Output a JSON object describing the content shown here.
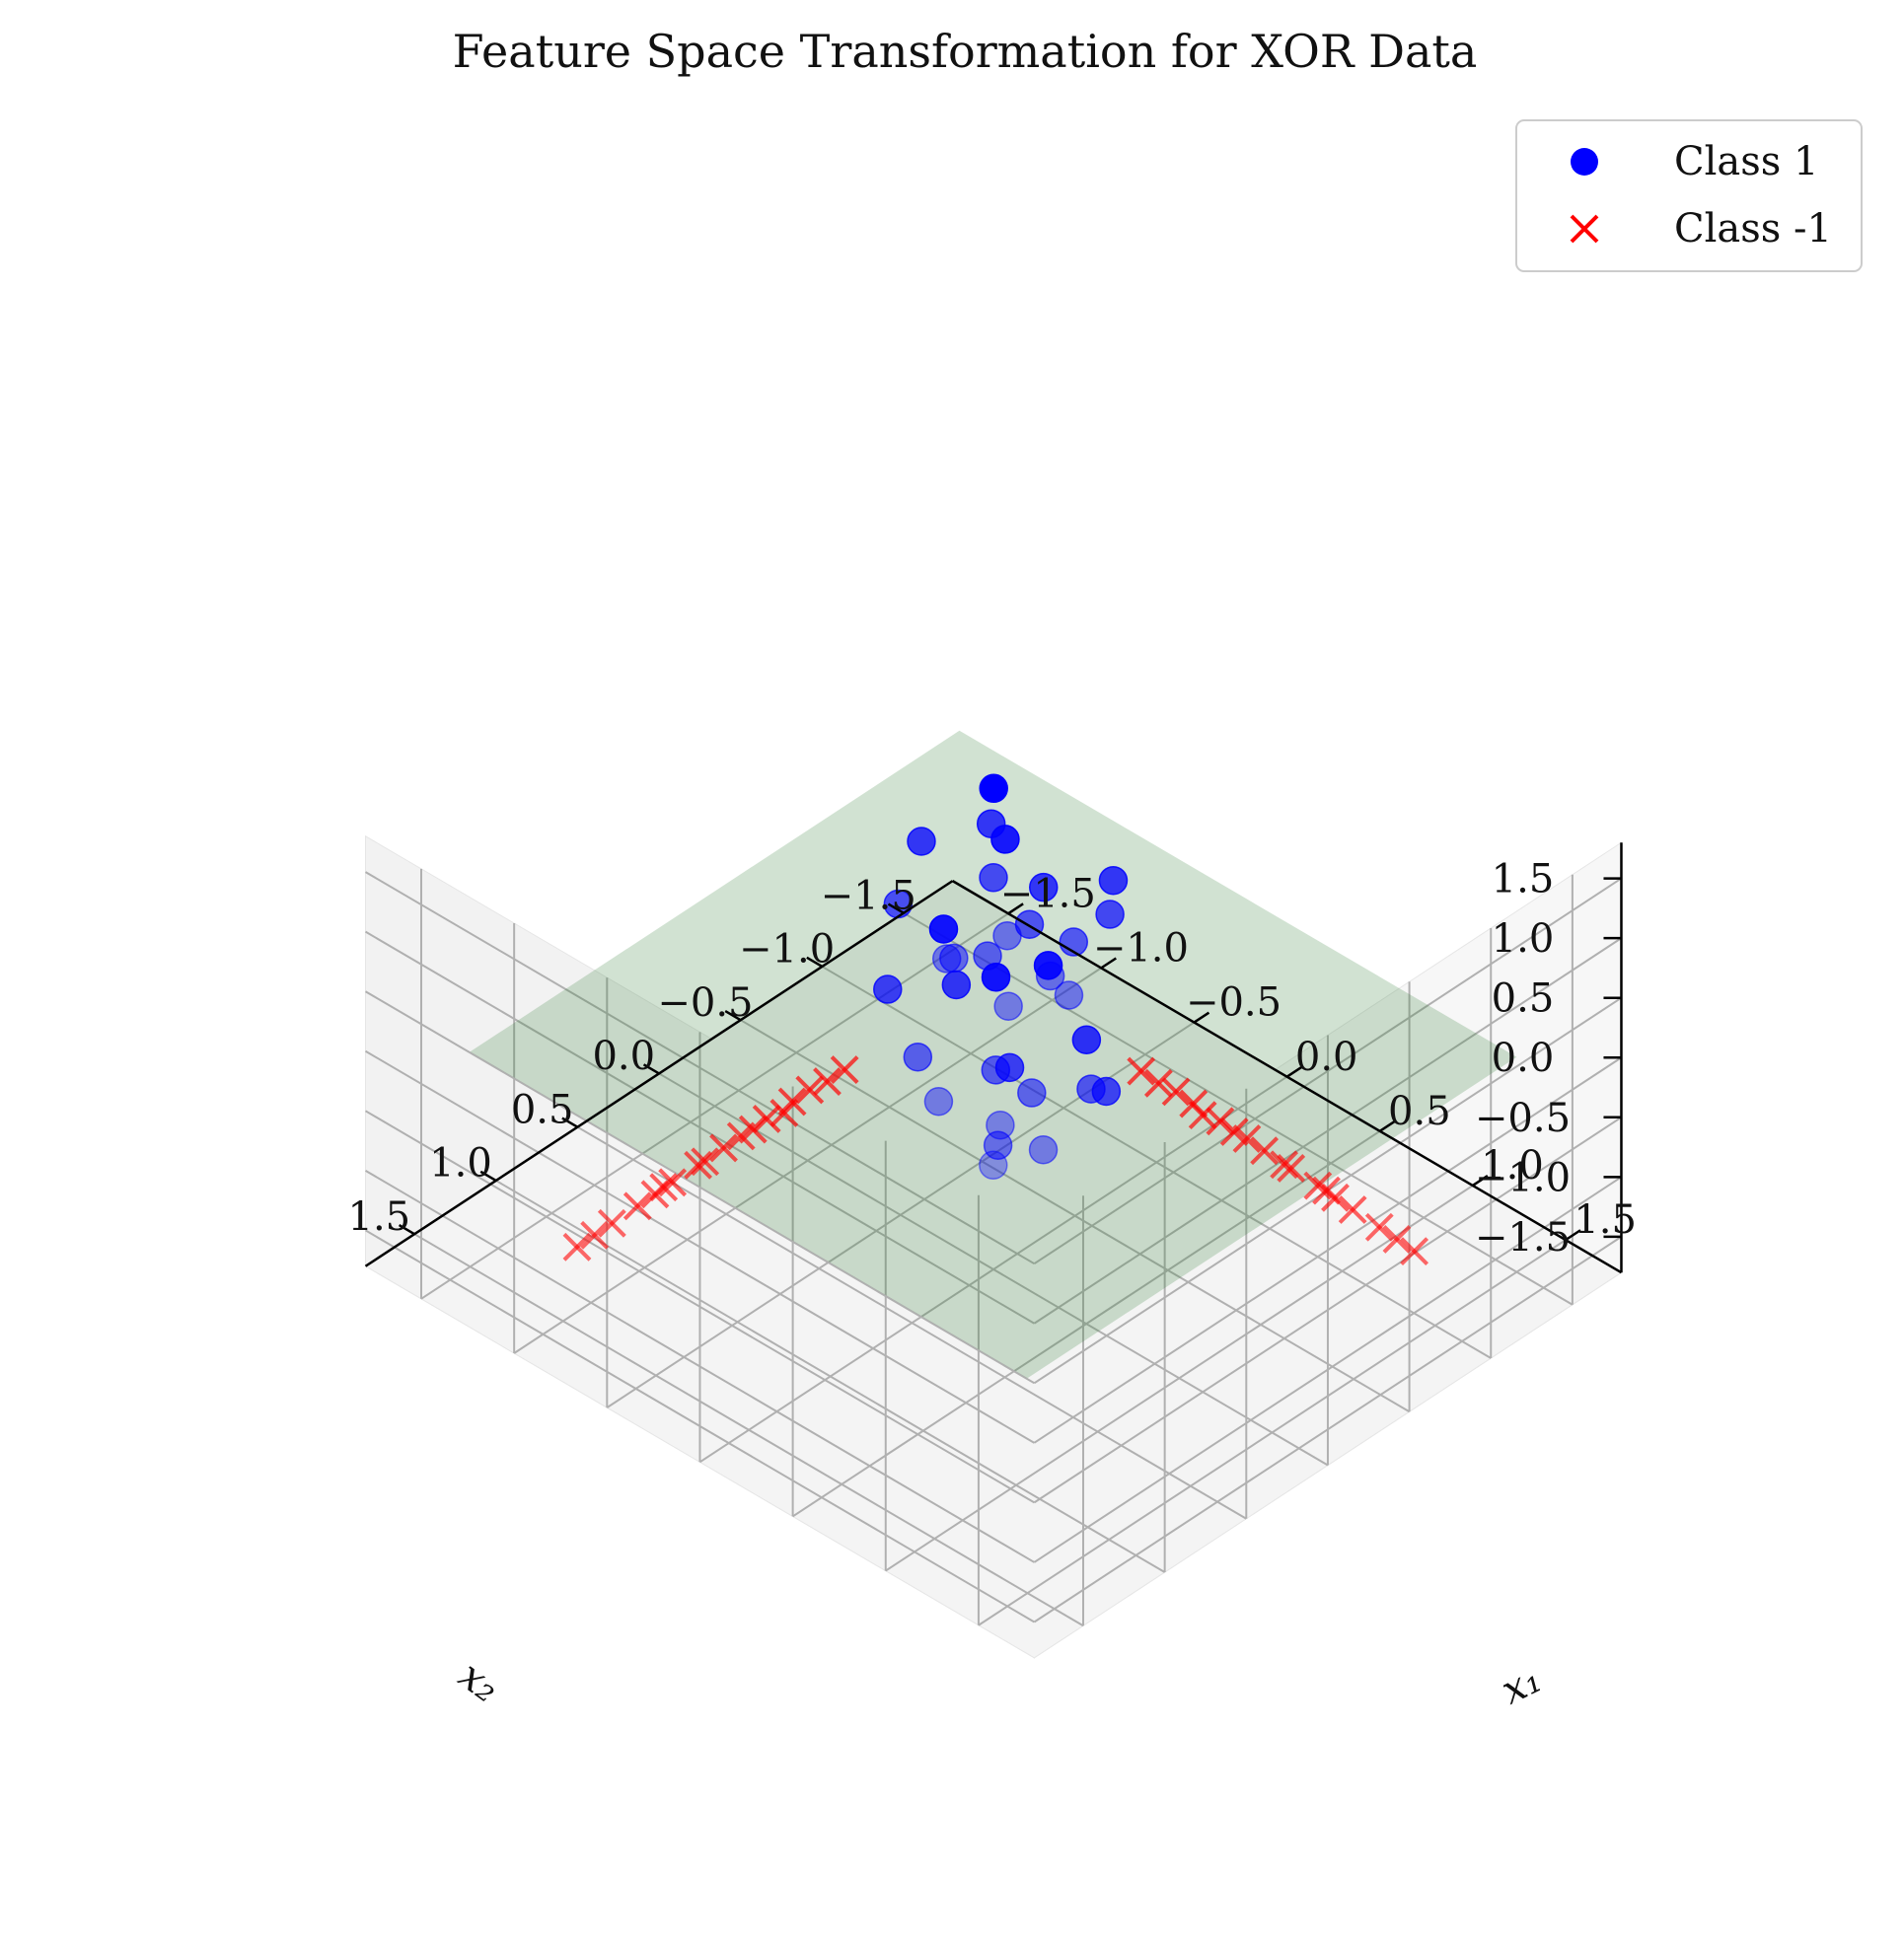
{
  "chart_data": {
    "type": "scatter",
    "projection": "3d",
    "title": "Feature Space Transformation for XOR Data",
    "xlabel": "x₁",
    "ylabel": "x₂",
    "zlabel": "",
    "xlim": [
      -1.8,
      1.8
    ],
    "ylim": [
      -1.8,
      1.8
    ],
    "zlim": [
      -1.8,
      1.8
    ],
    "x_ticks": [
      "−1.5",
      "−1.0",
      "−0.5",
      "0.0",
      "0.5",
      "1.0",
      "1.5"
    ],
    "y_ticks": [
      "−1.5",
      "−1.0",
      "−0.5",
      "0.0",
      "0.5",
      "1.0",
      "1.5"
    ],
    "z_ticks": [
      "−1.5",
      "−1.0",
      "−0.5",
      "0.0",
      "0.5",
      "1.0",
      "1.5"
    ],
    "grid": true,
    "legend_position": "top-right",
    "decision_plane": {
      "z": 0,
      "color": "#2e7d32",
      "opacity": 0.22
    },
    "series": [
      {
        "name": "Class 1",
        "marker": "circle",
        "color": "#0000ff",
        "points": [
          [
            -0.35,
            0.32,
            1.15
          ],
          [
            0.2,
            0.25,
            1.4
          ],
          [
            -0.4,
            -0.35,
            1.55
          ],
          [
            0.3,
            -0.25,
            1.3
          ],
          [
            0.05,
            0.45,
            0.95
          ],
          [
            -0.25,
            0.05,
            1.22
          ],
          [
            0.15,
            0.1,
            1.05
          ],
          [
            -0.1,
            -0.1,
            1.75
          ],
          [
            0.25,
            0.3,
            0.9
          ],
          [
            -0.3,
            -0.2,
            1.35
          ],
          [
            0.4,
            0.1,
            1.25
          ],
          [
            -0.15,
            0.3,
            1.08
          ],
          [
            0.1,
            -0.3,
            1.6
          ],
          [
            -0.05,
            0.15,
            1.18
          ],
          [
            0.3,
            0.05,
            1.12
          ],
          [
            -0.45,
            0.25,
            1.28
          ],
          [
            0.0,
            0.0,
            1.48
          ],
          [
            0.05,
            0.35,
            1.02
          ],
          [
            -0.35,
            0.3,
            -0.35
          ],
          [
            0.2,
            0.2,
            -0.4
          ],
          [
            0.45,
            0.1,
            0.1
          ],
          [
            -0.3,
            -0.25,
            0.15
          ],
          [
            0.15,
            0.4,
            -0.3
          ],
          [
            -0.1,
            0.0,
            -0.2
          ],
          [
            0.3,
            0.3,
            -0.05
          ],
          [
            -0.4,
            0.15,
            -0.1
          ],
          [
            0.0,
            -0.2,
            0.4
          ],
          [
            0.1,
            0.1,
            0.05
          ],
          [
            -0.2,
            0.35,
            -0.15
          ],
          [
            0.35,
            -0.1,
            0.2
          ],
          [
            -0.45,
            -0.1,
            0.25
          ],
          [
            0.05,
            0.25,
            -0.05
          ],
          [
            0.4,
            0.35,
            -0.25
          ],
          [
            -0.15,
            -0.4,
            0.55
          ],
          [
            0.25,
            -0.35,
            0.45
          ]
        ]
      },
      {
        "name": "Class -1",
        "marker": "x",
        "color": "#ff0000",
        "points": [
          [
            -1.0,
            1.2,
            -1.25
          ],
          [
            -0.9,
            1.05,
            -1.05
          ],
          [
            -0.8,
            0.9,
            -0.85
          ],
          [
            -0.7,
            0.75,
            -0.65
          ],
          [
            -0.6,
            0.55,
            -0.45
          ],
          [
            -0.95,
            1.1,
            -1.15
          ],
          [
            -0.85,
            1.0,
            -0.95
          ],
          [
            -0.75,
            0.8,
            -0.75
          ],
          [
            -0.65,
            0.65,
            -0.55
          ],
          [
            -0.55,
            0.5,
            -0.35
          ],
          [
            -1.05,
            1.25,
            -1.35
          ],
          [
            -0.78,
            0.88,
            -0.82
          ],
          [
            -0.68,
            0.7,
            -0.62
          ],
          [
            -0.6,
            0.6,
            -0.5
          ],
          [
            -0.45,
            0.4,
            -0.18
          ],
          [
            -0.88,
            1.02,
            -1.0
          ],
          [
            -1.1,
            1.3,
            -1.45
          ],
          [
            -0.5,
            0.45,
            -0.28
          ],
          [
            1.2,
            -1.0,
            -1.25
          ],
          [
            1.05,
            -0.9,
            -1.05
          ],
          [
            0.9,
            -0.8,
            -0.85
          ],
          [
            0.75,
            -0.7,
            -0.65
          ],
          [
            0.55,
            -0.6,
            -0.45
          ],
          [
            1.1,
            -0.95,
            -1.15
          ],
          [
            1.0,
            -0.85,
            -0.95
          ],
          [
            0.8,
            -0.75,
            -0.75
          ],
          [
            0.65,
            -0.65,
            -0.55
          ],
          [
            0.5,
            -0.55,
            -0.35
          ],
          [
            1.25,
            -1.05,
            -1.35
          ],
          [
            0.88,
            -0.78,
            -0.82
          ],
          [
            0.7,
            -0.68,
            -0.62
          ],
          [
            0.6,
            -0.6,
            -0.5
          ],
          [
            0.4,
            -0.45,
            -0.18
          ],
          [
            1.02,
            -0.88,
            -1.0
          ],
          [
            1.3,
            -1.1,
            -1.45
          ],
          [
            0.45,
            -0.5,
            -0.28
          ]
        ]
      }
    ]
  }
}
